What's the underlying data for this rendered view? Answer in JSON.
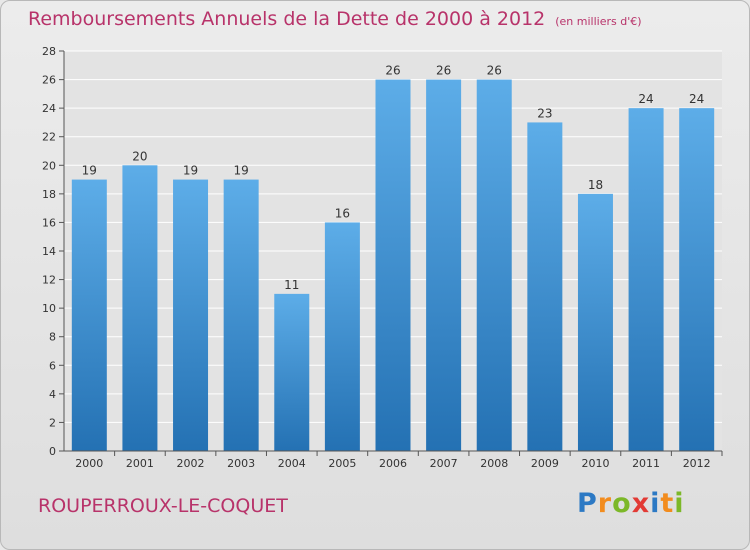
{
  "header": {
    "title": "Remboursements Annuels de la Dette de 2000 à 2012",
    "unit": "(en milliers d'€)"
  },
  "footer": {
    "commune": "ROUPERROUX-LE-COQUET",
    "logo": {
      "letters": [
        "P",
        "r",
        "o",
        "x",
        "i",
        "t",
        "i"
      ],
      "colors": [
        "#2c79c4",
        "#f28c1e",
        "#7cb828",
        "#e23a35",
        "#2c79c4",
        "#f28c1e",
        "#7cb828"
      ]
    }
  },
  "chart_data": {
    "type": "bar",
    "title": "Remboursements Annuels de la Dette de 2000 à 2012",
    "categories": [
      "2000",
      "2001",
      "2002",
      "2003",
      "2004",
      "2005",
      "2006",
      "2007",
      "2008",
      "2009",
      "2010",
      "2011",
      "2012"
    ],
    "values": [
      19,
      20,
      19,
      19,
      11,
      16,
      26,
      26,
      26,
      23,
      18,
      24,
      24
    ],
    "ylim": [
      0,
      28
    ],
    "yticks": [
      0,
      2,
      4,
      6,
      8,
      10,
      12,
      14,
      16,
      18,
      20,
      22,
      24,
      26,
      28
    ],
    "grid": true,
    "colors": {
      "bar_top": "#5dade8",
      "bar_bottom": "#2471b3",
      "grid": "#ffffff",
      "axis": "#555555",
      "title": "#b8336a"
    }
  }
}
